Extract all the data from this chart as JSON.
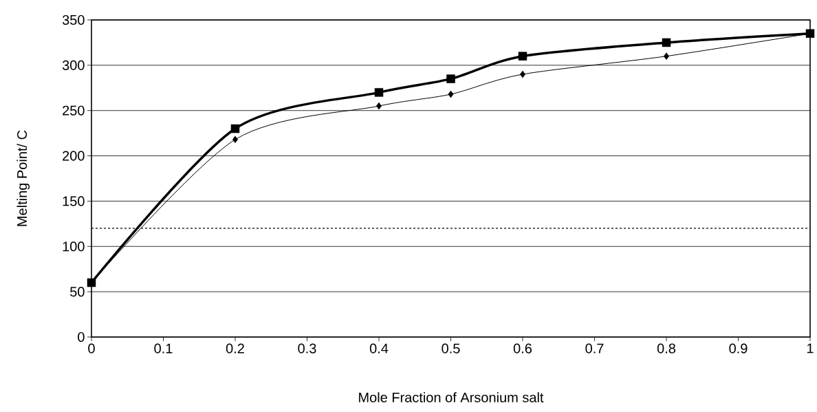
{
  "chart_data": {
    "type": "line",
    "xlabel": "Mole Fraction of Arsonium salt",
    "ylabel": "Melting Point/ C",
    "x": [
      0,
      0.2,
      0.4,
      0.5,
      0.6,
      0.8,
      1
    ],
    "series": [
      {
        "color": "#000000",
        "marker": "square",
        "values": [
          60,
          230,
          270,
          285,
          310,
          325,
          335
        ]
      },
      {
        "color": "#000000",
        "marker": "diamond",
        "values": [
          60,
          218,
          255,
          268,
          290,
          310,
          335
        ]
      }
    ],
    "xlim": [
      0,
      1
    ],
    "ylim": [
      0,
      350
    ],
    "xticks": [
      0,
      0.1,
      0.2,
      0.3,
      0.4,
      0.5,
      0.6,
      0.7,
      0.8,
      0.9,
      1
    ],
    "yticks": [
      0,
      50,
      100,
      150,
      200,
      250,
      300,
      350
    ],
    "grid": "y",
    "ref_lines": [
      {
        "axis": "y",
        "value": 120,
        "color": "#000000",
        "line_style": "dashed"
      }
    ]
  }
}
